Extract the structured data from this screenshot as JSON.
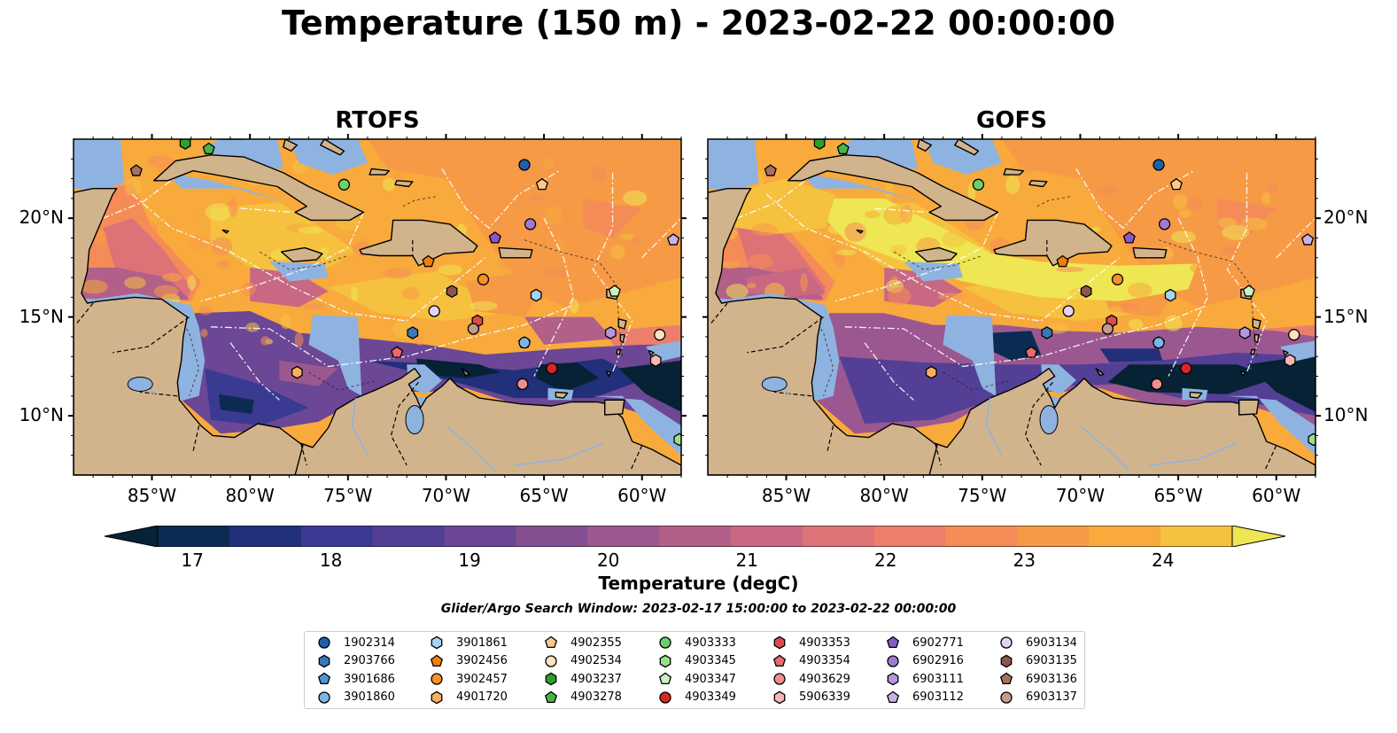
{
  "title": "Temperature (150 m) - 2023-02-22 00:00:00",
  "panels": [
    {
      "id": "rtofs",
      "title": "RTOFS"
    },
    {
      "id": "gofs",
      "title": "GOFS"
    }
  ],
  "lon_ticks": [
    "85°W",
    "80°W",
    "75°W",
    "70°W",
    "65°W",
    "60°W"
  ],
  "lat_ticks": [
    "20°N",
    "15°N",
    "10°N"
  ],
  "map_extent": {
    "lon": [
      -89,
      -58
    ],
    "lat": [
      7,
      24
    ]
  },
  "colorbar": {
    "label": "Temperature (degC)",
    "ticks": [
      "17",
      "18",
      "19",
      "20",
      "21",
      "22",
      "23",
      "24"
    ],
    "range": [
      16.75,
      24.5
    ],
    "colors": [
      "#062234",
      "#0c2b52",
      "#222f7a",
      "#3a3a92",
      "#543f96",
      "#6b4795",
      "#854f92",
      "#9b5890",
      "#b2608a",
      "#c86882",
      "#dd7277",
      "#ec7e6b",
      "#f58c58",
      "#f79a45",
      "#f8aa3c",
      "#f5c13f",
      "#eee653"
    ],
    "extend": "both"
  },
  "search_window": "Glider/Argo Search Window: 2023-02-17 15:00:00 to 2023-02-22 00:00:00",
  "colors": {
    "land": "#d2b48c",
    "shallow": "#8fb3e0",
    "deep": "#062234",
    "coast": "#000000"
  },
  "legend": [
    {
      "id": "1902314",
      "marker": "circle",
      "color": "#1f5fa8"
    },
    {
      "id": "2903766",
      "marker": "hexagon",
      "color": "#3a78b8"
    },
    {
      "id": "3901686",
      "marker": "pentagon",
      "color": "#4f93d1"
    },
    {
      "id": "3901860",
      "marker": "circle",
      "color": "#7ab6e8"
    },
    {
      "id": "3901861",
      "marker": "hexagon",
      "color": "#a5d3f3"
    },
    {
      "id": "3902456",
      "marker": "pentagon",
      "color": "#f07f0e"
    },
    {
      "id": "3902457",
      "marker": "circle",
      "color": "#f3912a"
    },
    {
      "id": "4901720",
      "marker": "hexagon",
      "color": "#f8b060"
    },
    {
      "id": "4902355",
      "marker": "pentagon",
      "color": "#fbc88f"
    },
    {
      "id": "4902534",
      "marker": "circle",
      "color": "#fde0c0"
    },
    {
      "id": "4903237",
      "marker": "hexagon",
      "color": "#2ca02c"
    },
    {
      "id": "4903278",
      "marker": "pentagon",
      "color": "#45b645"
    },
    {
      "id": "4903333",
      "marker": "circle",
      "color": "#6ccf6c"
    },
    {
      "id": "4903345",
      "marker": "hexagon",
      "color": "#98df8a"
    },
    {
      "id": "4903347",
      "marker": "pentagon",
      "color": "#c8f2c0"
    },
    {
      "id": "4903349",
      "marker": "circle",
      "color": "#d62728"
    },
    {
      "id": "4903353",
      "marker": "hexagon",
      "color": "#df4a4a"
    },
    {
      "id": "4903354",
      "marker": "pentagon",
      "color": "#e86b6b"
    },
    {
      "id": "4903629",
      "marker": "circle",
      "color": "#f08e8e"
    },
    {
      "id": "5906339",
      "marker": "hexagon",
      "color": "#f7b6b6"
    },
    {
      "id": "6902771",
      "marker": "pentagon",
      "color": "#8a58c4"
    },
    {
      "id": "6902916",
      "marker": "circle",
      "color": "#a07ad0"
    },
    {
      "id": "6903111",
      "marker": "hexagon",
      "color": "#b595dc"
    },
    {
      "id": "6903112",
      "marker": "pentagon",
      "color": "#c9b2ea"
    },
    {
      "id": "6903134",
      "marker": "circle",
      "color": "#e4d2f7"
    },
    {
      "id": "6903135",
      "marker": "hexagon",
      "color": "#8c564b"
    },
    {
      "id": "6903136",
      "marker": "pentagon",
      "color": "#a8705f"
    },
    {
      "id": "6903137",
      "marker": "circle",
      "color": "#c49a8a"
    }
  ],
  "floats": [
    {
      "id": "1902314",
      "lon": -66.0,
      "lat": 22.7
    },
    {
      "id": "2903766",
      "lon": -71.7,
      "lat": 14.2
    },
    {
      "id": "3901686",
      "lon": -66.0,
      "lat": 13.7
    },
    {
      "id": "3901860",
      "lon": -66.0,
      "lat": 13.7
    },
    {
      "id": "3901861",
      "lon": -65.4,
      "lat": 16.1
    },
    {
      "id": "3902456",
      "lon": -70.9,
      "lat": 17.8
    },
    {
      "id": "3902457",
      "lon": -68.1,
      "lat": 16.9
    },
    {
      "id": "4901720",
      "lon": -77.6,
      "lat": 12.2
    },
    {
      "id": "4902355",
      "lon": -65.1,
      "lat": 21.7
    },
    {
      "id": "4902534",
      "lon": -59.1,
      "lat": 14.1
    },
    {
      "id": "4903237",
      "lon": -83.3,
      "lat": 23.8
    },
    {
      "id": "4903278",
      "lon": -82.1,
      "lat": 23.5
    },
    {
      "id": "4903333",
      "lon": -75.2,
      "lat": 21.7
    },
    {
      "id": "4903345",
      "lon": -58.1,
      "lat": 8.8
    },
    {
      "id": "4903347",
      "lon": -61.4,
      "lat": 16.3
    },
    {
      "id": "4903349",
      "lon": -64.6,
      "lat": 12.4
    },
    {
      "id": "4903353",
      "lon": -68.4,
      "lat": 14.8
    },
    {
      "id": "4903354",
      "lon": -72.5,
      "lat": 13.2
    },
    {
      "id": "4903629",
      "lon": -66.1,
      "lat": 11.6
    },
    {
      "id": "5906339",
      "lon": -59.3,
      "lat": 12.8
    },
    {
      "id": "6902771",
      "lon": -67.5,
      "lat": 19.0
    },
    {
      "id": "6902916",
      "lon": -65.7,
      "lat": 19.7
    },
    {
      "id": "6903111",
      "lon": -61.6,
      "lat": 14.2
    },
    {
      "id": "6903112",
      "lon": -58.4,
      "lat": 18.9
    },
    {
      "id": "6903134",
      "lon": -70.6,
      "lat": 15.3
    },
    {
      "id": "6903135",
      "lon": -69.7,
      "lat": 16.3
    },
    {
      "id": "6903136",
      "lon": -85.8,
      "lat": 22.4
    },
    {
      "id": "6903137",
      "lon": -68.6,
      "lat": 14.4
    }
  ]
}
